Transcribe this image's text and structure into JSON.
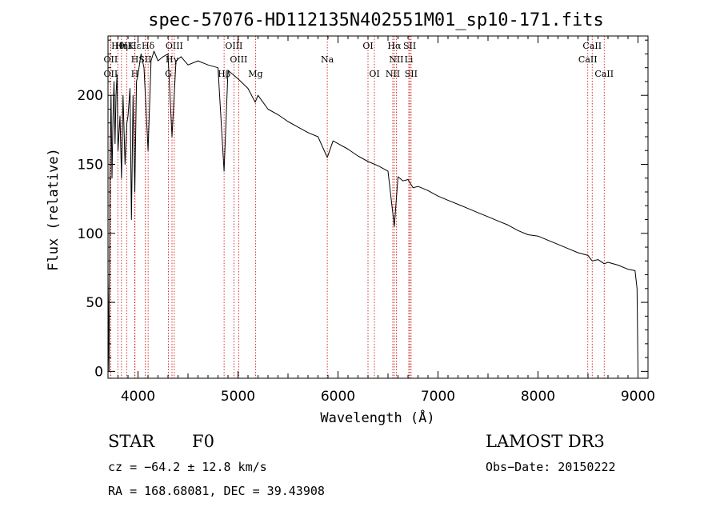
{
  "chart_data": {
    "type": "line",
    "title": "spec-57076-HD112135N402551M01_sp10-171.fits",
    "xlabel": "Wavelength (Å)",
    "ylabel": "Flux (relative)",
    "xlim": [
      3700,
      9100
    ],
    "ylim": [
      -5,
      243
    ],
    "xticks": [
      4000,
      5000,
      6000,
      7000,
      8000,
      9000
    ],
    "yticks": [
      0,
      50,
      100,
      150,
      200
    ],
    "grid": false,
    "series": [
      {
        "name": "spectrum",
        "x": [
          3700,
          3710,
          3720,
          3730,
          3740,
          3750,
          3760,
          3770,
          3780,
          3790,
          3800,
          3820,
          3835,
          3850,
          3870,
          3889,
          3900,
          3920,
          3934,
          3950,
          3968,
          3985,
          4000,
          4030,
          4060,
          4101,
          4130,
          4160,
          4200,
          4250,
          4300,
          4340,
          4380,
          4430,
          4500,
          4600,
          4700,
          4800,
          4861,
          4900,
          4950,
          5000,
          5100,
          5172,
          5200,
          5300,
          5400,
          5500,
          5600,
          5700,
          5800,
          5893,
          5950,
          6000,
          6100,
          6200,
          6300,
          6400,
          6500,
          6563,
          6600,
          6650,
          6700,
          6750,
          6800,
          6900,
          7000,
          7100,
          7200,
          7300,
          7400,
          7500,
          7600,
          7700,
          7800,
          7900,
          8000,
          8100,
          8200,
          8300,
          8400,
          8500,
          8542,
          8600,
          8662,
          8700,
          8800,
          8900,
          8970,
          8990,
          9000
        ],
        "y": [
          70,
          0,
          145,
          200,
          140,
          185,
          210,
          165,
          200,
          215,
          160,
          185,
          140,
          200,
          150,
          180,
          185,
          205,
          110,
          200,
          130,
          210,
          215,
          230,
          220,
          160,
          225,
          232,
          225,
          228,
          230,
          170,
          225,
          228,
          222,
          225,
          222,
          220,
          145,
          218,
          215,
          212,
          205,
          195,
          200,
          190,
          186,
          181,
          177,
          173,
          170,
          155,
          167,
          165,
          161,
          156,
          152,
          149,
          145,
          105,
          141,
          138,
          139,
          133,
          134,
          131,
          127,
          124,
          121,
          118,
          115,
          112,
          109,
          106,
          102,
          99,
          98,
          95,
          92,
          89,
          86,
          84,
          80,
          81,
          78,
          79,
          77,
          74,
          73,
          60,
          0
        ]
      }
    ],
    "lines": [
      {
        "label": "Hθ",
        "wl": 3798,
        "row": 1
      },
      {
        "label": "OII",
        "wl": 3727,
        "row": 2
      },
      {
        "label": "OII",
        "wl": 3727,
        "row": 3
      },
      {
        "label": "Hη",
        "wl": 3835,
        "row": 1
      },
      {
        "label": "HK",
        "wl": 3889,
        "row": 1
      },
      {
        "label": "Hε",
        "wl": 3970,
        "row": 1
      },
      {
        "label": "H",
        "wl": 3968,
        "row": 2
      },
      {
        "label": "H",
        "wl": 3968,
        "row": 3
      },
      {
        "label": "Hδ",
        "wl": 4101,
        "row": 1
      },
      {
        "label": "SII",
        "wl": 4072,
        "row": 2
      },
      {
        "label": "OIII",
        "wl": 4363,
        "row": 1
      },
      {
        "label": "Hγ",
        "wl": 4340,
        "row": 2
      },
      {
        "label": "G",
        "wl": 4304,
        "row": 3
      },
      {
        "label": "OIII",
        "wl": 4959,
        "row": 1
      },
      {
        "label": "OIII",
        "wl": 5007,
        "row": 2
      },
      {
        "label": "Hβ",
        "wl": 4861,
        "row": 3
      },
      {
        "label": "Mg",
        "wl": 5175,
        "row": 3
      },
      {
        "label": "Na",
        "wl": 5893,
        "row": 2
      },
      {
        "label": "OI",
        "wl": 6300,
        "row": 1
      },
      {
        "label": "OI",
        "wl": 6364,
        "row": 3
      },
      {
        "label": "Hα",
        "wl": 6563,
        "row": 1
      },
      {
        "label": "SII",
        "wl": 6717,
        "row": 1
      },
      {
        "label": "NII",
        "wl": 6583,
        "row": 2
      },
      {
        "label": "Li",
        "wl": 6708,
        "row": 2
      },
      {
        "label": "NII",
        "wl": 6548,
        "row": 3
      },
      {
        "label": "SII",
        "wl": 6731,
        "row": 3
      },
      {
        "label": "CaII",
        "wl": 8542,
        "row": 1
      },
      {
        "label": "CaII",
        "wl": 8498,
        "row": 2
      },
      {
        "label": "CaII",
        "wl": 8662,
        "row": 3
      }
    ]
  },
  "footer": {
    "object_type": "STAR",
    "subclass": "F0",
    "survey": "LAMOST DR3",
    "cz": "cz = −64.2 ± 12.8 km/s",
    "obs_date": "Obs−Date: 20150222",
    "coords": "RA = 168.68081, DEC =  39.43908"
  },
  "colors": {
    "spectrum": "#000000",
    "line_markers": "#cc0000"
  }
}
